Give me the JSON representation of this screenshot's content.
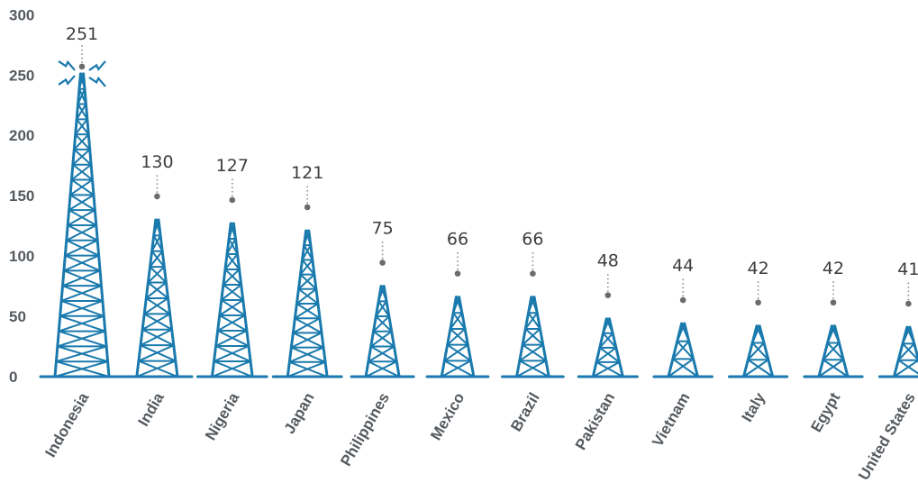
{
  "chart_data": {
    "type": "bar",
    "title": "",
    "xlabel": "",
    "ylabel": "",
    "ylim": [
      0,
      300
    ],
    "yticks": [
      0,
      50,
      100,
      150,
      200,
      250,
      300
    ],
    "categories": [
      "Indonesia",
      "India",
      "Nigeria",
      "Japan",
      "Philippines",
      "Mexico",
      "Brazil",
      "Pakistan",
      "Vietnam",
      "Italy",
      "Egypt",
      "United States"
    ],
    "values": [
      251,
      130,
      127,
      121,
      75,
      66,
      66,
      48,
      44,
      42,
      42,
      41
    ],
    "bar_style": "transmission-tower",
    "highlight": "Indonesia",
    "grid": false,
    "legend": "none"
  },
  "colors": {
    "tower": "#1a7aad",
    "axis_text": "#555a5f",
    "value_text": "#3d3d3d",
    "leader": "#8a8a8a",
    "dot": "#6b6b6b",
    "signal": "#1a7aad"
  }
}
